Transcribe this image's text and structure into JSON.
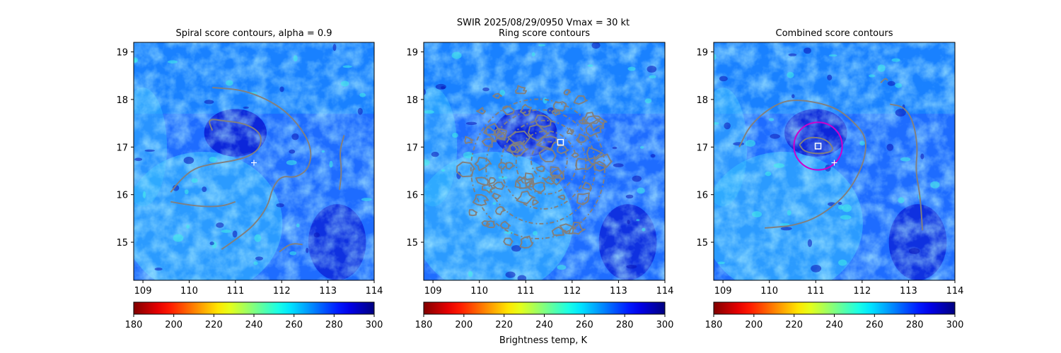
{
  "figure": {
    "suptitle_line1": "SWIR  2025/08/29/0950    Vmax = 30 kt",
    "colorbar_label": "Brightness temp, K"
  },
  "chart_data": [
    {
      "type": "heatmap",
      "title": "Spiral score contours, alpha =  0.9",
      "xlim": [
        108.8,
        114.0
      ],
      "ylim": [
        14.2,
        19.2
      ],
      "xticks": [
        109,
        110,
        111,
        112,
        113,
        114
      ],
      "yticks": [
        15,
        16,
        17,
        18,
        19
      ],
      "colorscale": "jet",
      "clim": [
        180,
        300
      ],
      "colorbar_ticks": [
        180,
        200,
        220,
        240,
        260,
        280,
        300
      ],
      "center_marker": {
        "symbol": "+",
        "lon": 111.4,
        "lat": 16.67
      },
      "contours": [
        {
          "name": "spiral-contour-main",
          "points": [
            [
              110.5,
              18.25
            ],
            [
              111.2,
              18.2
            ],
            [
              111.9,
              17.9
            ],
            [
              112.35,
              17.5
            ],
            [
              112.65,
              17.0
            ],
            [
              112.6,
              16.55
            ],
            [
              112.3,
              16.35
            ],
            [
              112.0,
              16.4
            ],
            [
              111.8,
              16.15
            ],
            [
              111.7,
              15.75
            ],
            [
              111.4,
              15.35
            ],
            [
              111.0,
              15.05
            ],
            [
              110.7,
              14.85
            ]
          ]
        },
        {
          "name": "spiral-contour-inner",
          "points": [
            [
              110.5,
              17.35
            ],
            [
              110.4,
              17.6
            ],
            [
              110.75,
              17.55
            ],
            [
              111.2,
              17.5
            ],
            [
              111.55,
              17.3
            ],
            [
              111.55,
              17.0
            ],
            [
              111.3,
              16.8
            ],
            [
              110.9,
              16.7
            ],
            [
              110.5,
              16.65
            ],
            [
              110.1,
              16.55
            ],
            [
              109.8,
              16.3
            ],
            [
              109.6,
              16.05
            ]
          ]
        },
        {
          "name": "spiral-contour-south",
          "points": [
            [
              109.6,
              15.85
            ],
            [
              110.2,
              15.75
            ],
            [
              110.7,
              15.75
            ],
            [
              111.0,
              15.85
            ]
          ]
        },
        {
          "name": "spiral-contour-east",
          "points": [
            [
              113.35,
              17.25
            ],
            [
              113.25,
              16.9
            ],
            [
              113.3,
              16.5
            ],
            [
              113.25,
              16.1
            ]
          ]
        },
        {
          "name": "spiral-contour-small",
          "points": [
            [
              111.95,
              14.8
            ],
            [
              112.2,
              14.98
            ],
            [
              112.45,
              14.95
            ]
          ]
        }
      ]
    },
    {
      "type": "heatmap",
      "title": "Ring score contours",
      "xlim": [
        108.8,
        114.0
      ],
      "ylim": [
        14.2,
        19.2
      ],
      "xticks": [
        109,
        110,
        111,
        112,
        113,
        114
      ],
      "yticks": [
        15,
        16,
        17,
        18,
        19
      ],
      "colorscale": "jet",
      "clim": [
        180,
        300
      ],
      "colorbar_ticks": [
        180,
        200,
        220,
        240,
        260,
        280,
        300
      ],
      "center_marker": {
        "symbol": "square",
        "lon": 111.75,
        "lat": 17.1
      },
      "contour_region": {
        "center_lon": 111.2,
        "center_lat": 16.6,
        "lon_radius": 1.55,
        "lat_radius": 1.75
      }
    },
    {
      "type": "heatmap",
      "title": "Combined score contours",
      "xlim": [
        108.8,
        114.0
      ],
      "ylim": [
        14.2,
        19.2
      ],
      "xticks": [
        109,
        110,
        111,
        112,
        113,
        114
      ],
      "yticks": [
        15,
        16,
        17,
        18,
        19
      ],
      "colorscale": "jet",
      "clim": [
        180,
        300
      ],
      "colorbar_ticks": [
        180,
        200,
        220,
        240,
        260,
        280,
        300
      ],
      "center_marker": {
        "symbol": "square",
        "lon": 111.05,
        "lat": 17.02
      },
      "first_guess_marker": {
        "symbol": "+",
        "lon": 111.4,
        "lat": 16.67
      },
      "ring": {
        "lon": 111.05,
        "lat": 17.02,
        "lon_radius": 0.52,
        "lat_radius": 0.5,
        "color": "#cc00cc"
      },
      "contours": [
        {
          "name": "combined-contour-core",
          "points": [
            [
              110.65,
              17.05
            ],
            [
              110.8,
              17.2
            ],
            [
              111.1,
              17.2
            ],
            [
              111.3,
              17.1
            ],
            [
              111.4,
              16.92
            ],
            [
              111.1,
              16.85
            ],
            [
              110.75,
              16.9
            ],
            [
              110.65,
              17.05
            ]
          ]
        },
        {
          "name": "combined-contour-outer",
          "points": [
            [
              109.35,
              17.0
            ],
            [
              109.6,
              17.5
            ],
            [
              110.2,
              17.95
            ],
            [
              110.7,
              18.0
            ],
            [
              111.4,
              17.85
            ],
            [
              111.8,
              17.55
            ],
            [
              112.1,
              17.2
            ],
            [
              112.05,
              16.7
            ],
            [
              111.8,
              16.2
            ],
            [
              111.5,
              15.85
            ],
            [
              111.0,
              15.5
            ],
            [
              110.5,
              15.35
            ],
            [
              110.2,
              15.32
            ],
            [
              109.9,
              15.3
            ]
          ]
        },
        {
          "name": "combined-contour-east",
          "points": [
            [
              112.6,
              17.9
            ],
            [
              112.9,
              17.85
            ],
            [
              113.1,
              17.55
            ],
            [
              113.2,
              17.0
            ],
            [
              113.15,
              16.5
            ],
            [
              113.25,
              16.0
            ],
            [
              113.3,
              15.25
            ]
          ]
        },
        {
          "name": "combined-contour-ne",
          "points": [
            [
              112.4,
              18.35
            ],
            [
              112.5,
              18.45
            ],
            [
              112.55,
              18.4
            ]
          ]
        }
      ]
    }
  ]
}
